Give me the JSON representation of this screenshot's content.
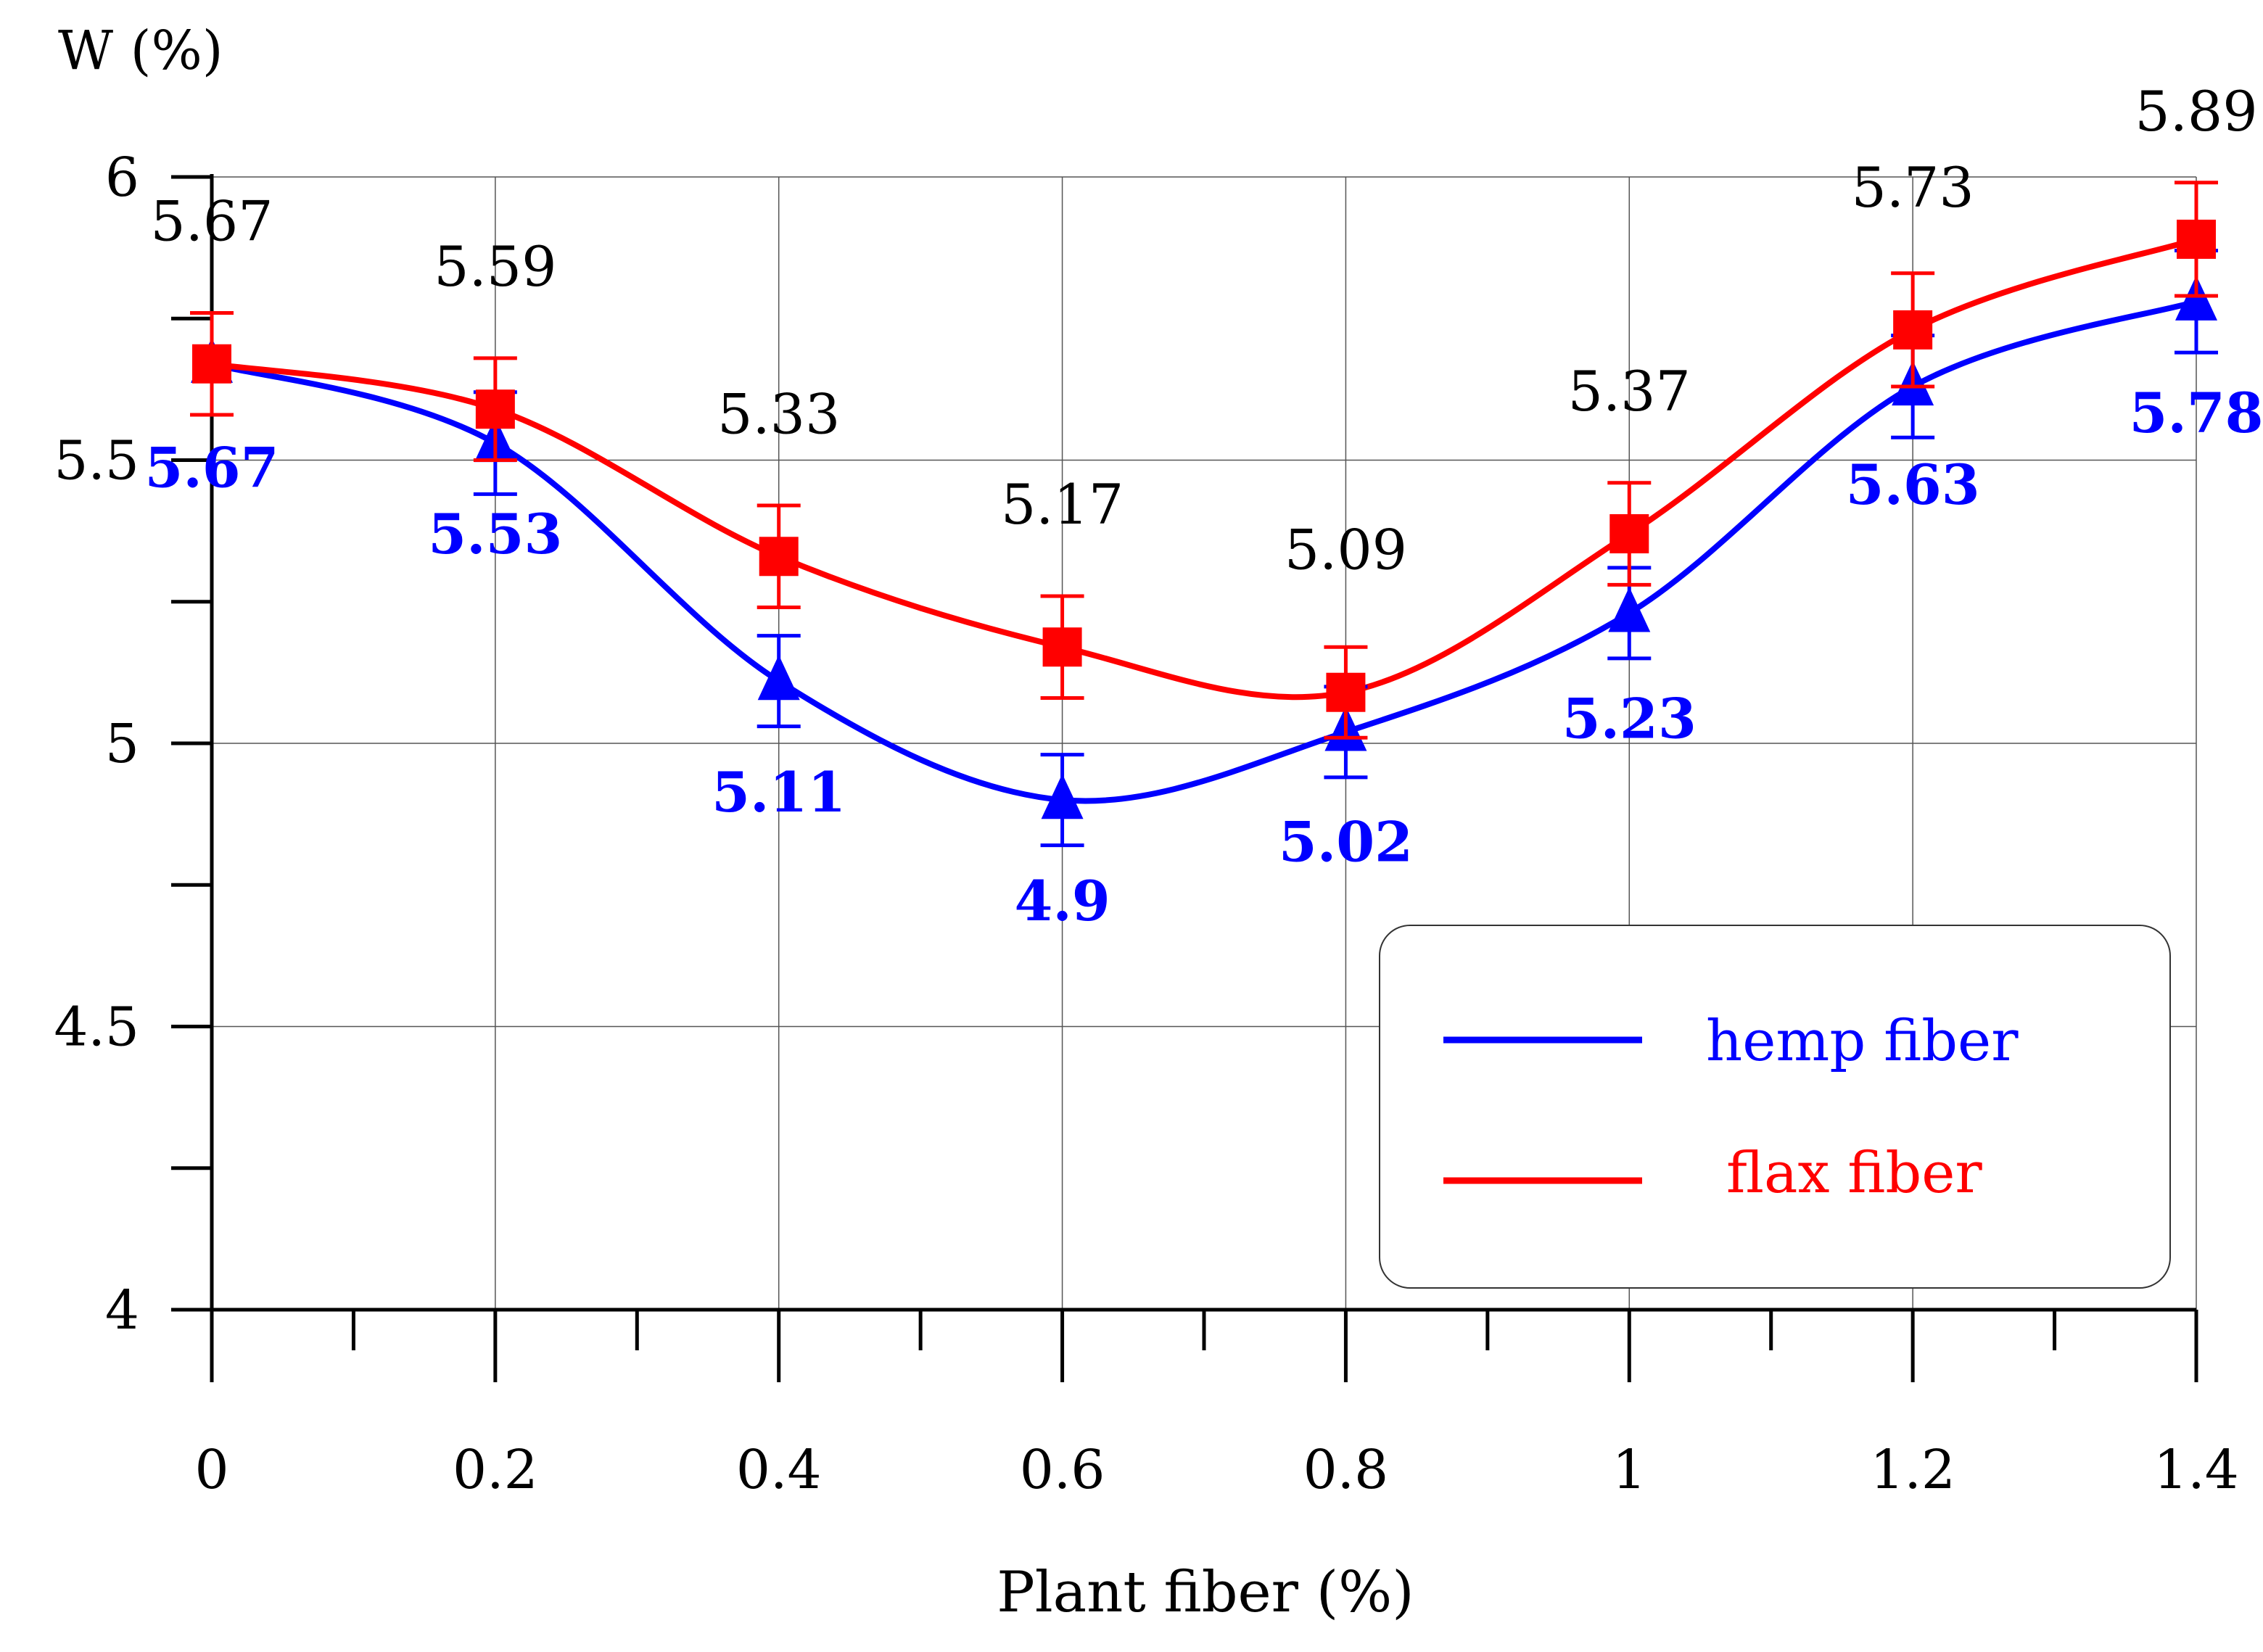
{
  "chart_data": {
    "type": "line",
    "title": "",
    "xlabel": "Plant fiber (%)",
    "ylabel": "W (%)",
    "x": [
      0,
      0.2,
      0.4,
      0.6,
      0.8,
      1,
      1.2,
      1.4
    ],
    "x_tick_labels": [
      "0",
      "0.2",
      "0.4",
      "0.6",
      "0.8",
      "1",
      "1.2",
      "1.4"
    ],
    "y_ticks": [
      4,
      4.5,
      5,
      5.5,
      6
    ],
    "y_tick_labels": [
      "4",
      "4.5",
      "5",
      "5.5",
      "6"
    ],
    "xlim": [
      0,
      1.4
    ],
    "ylim": [
      4,
      6
    ],
    "grid": true,
    "legend_position": "bottom-right",
    "series": [
      {
        "name": "hemp fiber",
        "color": "#0000ff",
        "marker": "triangle",
        "values": [
          5.67,
          5.53,
          5.11,
          4.9,
          5.02,
          5.23,
          5.63,
          5.78
        ],
        "labels": [
          "5.67",
          "5.53",
          "5.11",
          "4.9",
          "5.02",
          "5.23",
          "5.63",
          "5.78"
        ],
        "error": [
          0.09,
          0.09,
          0.08,
          0.08,
          0.08,
          0.08,
          0.09,
          0.09
        ]
      },
      {
        "name": "flax fiber",
        "color": "#ff0000",
        "marker": "square",
        "values": [
          5.67,
          5.59,
          5.33,
          5.17,
          5.09,
          5.37,
          5.73,
          5.89
        ],
        "labels": [
          "5.67",
          "5.59",
          "5.33",
          "5.17",
          "5.09",
          "5.37",
          "5.73",
          "5.89"
        ],
        "error": [
          0.09,
          0.09,
          0.09,
          0.09,
          0.08,
          0.09,
          0.1,
          0.1
        ]
      }
    ]
  }
}
